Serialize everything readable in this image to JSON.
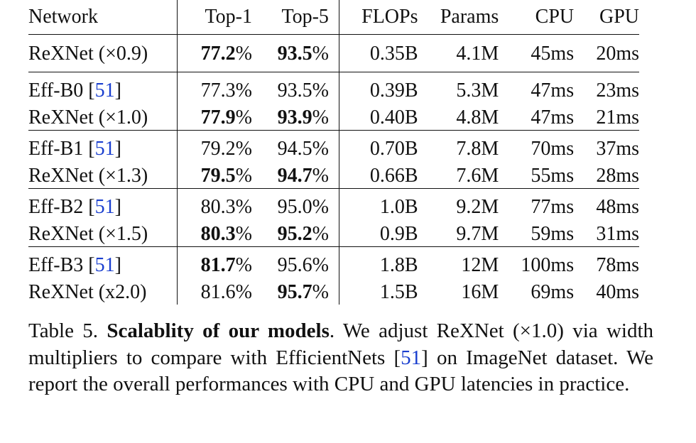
{
  "table": {
    "columns": [
      "Network",
      "Top-1",
      "Top-5",
      "FLOPs",
      "Params",
      "CPU",
      "GPU"
    ],
    "groups": [
      {
        "rows": [
          {
            "network": "ReXNet (×0.9)",
            "cite": "",
            "top1": "77.2",
            "top1_bold": true,
            "top5": "93.5",
            "top5_bold": true,
            "flops": "0.35B",
            "params": "4.1M",
            "cpu": "45ms",
            "gpu": "20ms"
          }
        ]
      },
      {
        "rows": [
          {
            "network": "Eff-B0",
            "cite": "51",
            "top1": "77.3",
            "top1_bold": false,
            "top5": "93.5",
            "top5_bold": false,
            "flops": "0.39B",
            "params": "5.3M",
            "cpu": "47ms",
            "gpu": "23ms"
          },
          {
            "network": "ReXNet (×1.0)",
            "cite": "",
            "top1": "77.9",
            "top1_bold": true,
            "top5": "93.9",
            "top5_bold": true,
            "flops": "0.40B",
            "params": "4.8M",
            "cpu": "47ms",
            "gpu": "21ms"
          }
        ]
      },
      {
        "rows": [
          {
            "network": "Eff-B1",
            "cite": "51",
            "top1": "79.2",
            "top1_bold": false,
            "top5": "94.5",
            "top5_bold": false,
            "flops": "0.70B",
            "params": "7.8M",
            "cpu": "70ms",
            "gpu": "37ms"
          },
          {
            "network": "ReXNet (×1.3)",
            "cite": "",
            "top1": "79.5",
            "top1_bold": true,
            "top5": "94.7",
            "top5_bold": true,
            "flops": "0.66B",
            "params": "7.6M",
            "cpu": "55ms",
            "gpu": "28ms"
          }
        ]
      },
      {
        "rows": [
          {
            "network": "Eff-B2",
            "cite": "51",
            "top1": "80.3",
            "top1_bold": false,
            "top5": "95.0",
            "top5_bold": false,
            "flops": "1.0B",
            "params": "9.2M",
            "cpu": "77ms",
            "gpu": "48ms"
          },
          {
            "network": "ReXNet (×1.5)",
            "cite": "",
            "top1": "80.3",
            "top1_bold": true,
            "top5": "95.2",
            "top5_bold": true,
            "flops": "0.9B",
            "params": "9.7M",
            "cpu": "59ms",
            "gpu": "31ms"
          }
        ]
      },
      {
        "rows": [
          {
            "network": "Eff-B3",
            "cite": "51",
            "top1": "81.7",
            "top1_bold": true,
            "top5": "95.6",
            "top5_bold": false,
            "flops": "1.8B",
            "params": "12M",
            "cpu": "100ms",
            "gpu": "78ms"
          },
          {
            "network": "ReXNet (x2.0)",
            "cite": "",
            "top1": "81.6",
            "top1_bold": false,
            "top5": "95.7",
            "top5_bold": true,
            "flops": "1.5B",
            "params": "16M",
            "cpu": "69ms",
            "gpu": "40ms"
          }
        ]
      }
    ]
  },
  "caption": {
    "label": "Table 5.",
    "title": "Scalablity of our models",
    "text_before_cite": ". We adjust ReXNet (×1.0) via width multipliers to compare with EfficientNets ",
    "cite": "51",
    "text_after_cite": " on ImageNet dataset. We report the overall performances with CPU and GPU latencies in practice."
  },
  "colors": {
    "cite": "#1a3fcf",
    "text": "#111111"
  }
}
